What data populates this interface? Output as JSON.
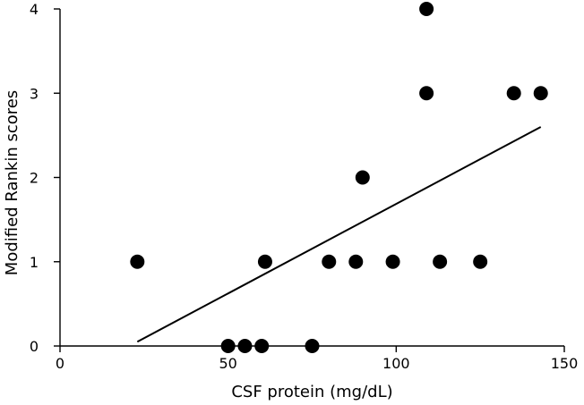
{
  "chart_data": {
    "type": "scatter",
    "title": "",
    "xlabel": "CSF protein (mg/dL)",
    "ylabel": "Modified Rankin scores",
    "xlim": [
      0,
      150
    ],
    "ylim": [
      0,
      4
    ],
    "x_ticks": [
      0,
      50,
      100,
      150
    ],
    "y_ticks": [
      0,
      1,
      2,
      3,
      4
    ],
    "x_tick_labels": [
      "0",
      "50",
      "100",
      "150"
    ],
    "y_tick_labels": [
      "0",
      "1",
      "2",
      "3",
      "4"
    ],
    "grid": false,
    "points": [
      {
        "x": 23,
        "y": 1
      },
      {
        "x": 50,
        "y": 0
      },
      {
        "x": 55,
        "y": 0
      },
      {
        "x": 60,
        "y": 0
      },
      {
        "x": 61,
        "y": 1
      },
      {
        "x": 75,
        "y": 0
      },
      {
        "x": 80,
        "y": 1
      },
      {
        "x": 88,
        "y": 1
      },
      {
        "x": 90,
        "y": 2
      },
      {
        "x": 99,
        "y": 1
      },
      {
        "x": 109,
        "y": 4
      },
      {
        "x": 109,
        "y": 3
      },
      {
        "x": 113,
        "y": 1
      },
      {
        "x": 125,
        "y": 1
      },
      {
        "x": 135,
        "y": 3
      },
      {
        "x": 143,
        "y": 3
      }
    ],
    "trendline": {
      "x": [
        23,
        143
      ],
      "y": [
        0.05,
        2.6
      ]
    },
    "colors": {
      "points": "#000000",
      "line": "#000000",
      "axis": "#000000"
    }
  }
}
